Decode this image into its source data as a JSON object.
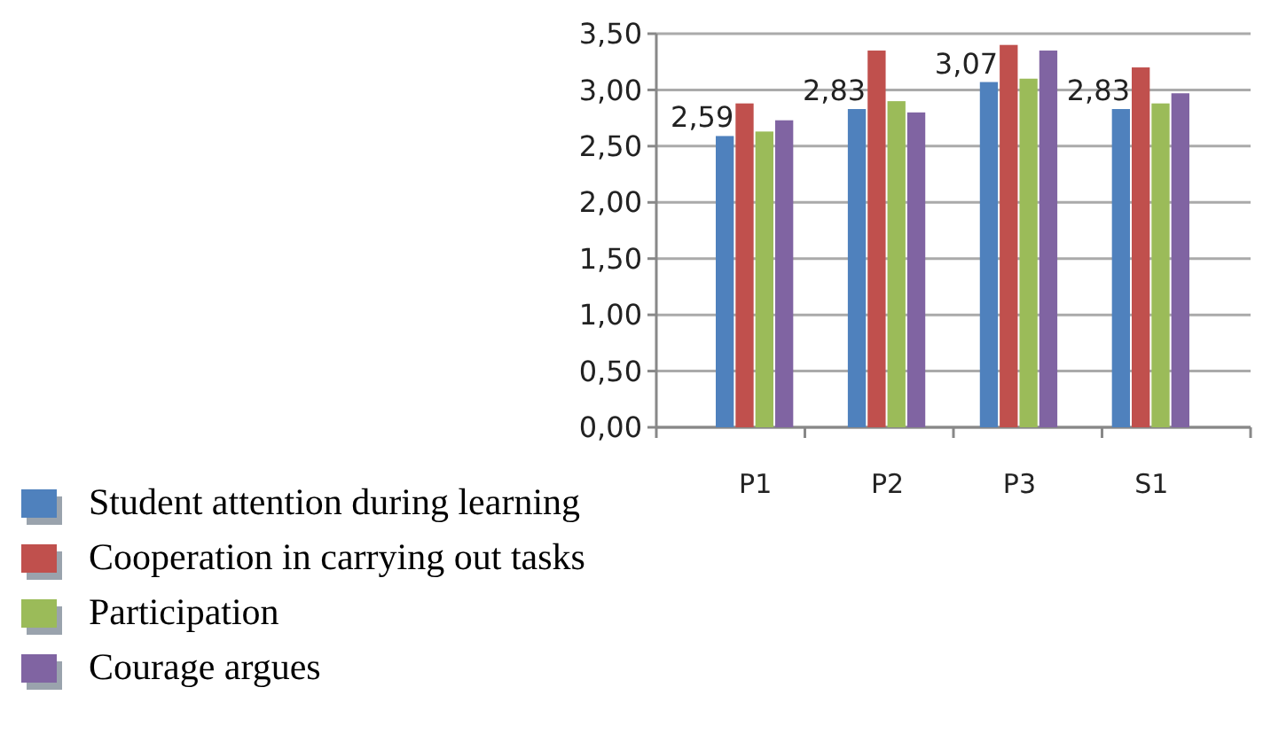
{
  "chart_data": {
    "type": "bar",
    "categories": [
      "P1",
      "P2",
      "P3",
      "S1"
    ],
    "series": [
      {
        "name": "Student attention during learning",
        "color": "#4f81bd",
        "values": [
          2.59,
          2.83,
          3.07,
          2.83
        ],
        "value_labels": [
          "2,59",
          "2,83",
          "3,07",
          "2,83"
        ]
      },
      {
        "name": "Cooperation in carrying out tasks",
        "color": "#c0504d",
        "values": [
          2.88,
          3.35,
          3.4,
          3.2
        ]
      },
      {
        "name": "Participation",
        "color": "#9bbb59",
        "values": [
          2.63,
          2.9,
          3.1,
          2.88
        ]
      },
      {
        "name": "Courage argues",
        "color": "#8064a2",
        "values": [
          2.73,
          2.8,
          3.35,
          2.97
        ]
      }
    ],
    "ylim": [
      0,
      3.5
    ],
    "yticks": [
      {
        "value": 0,
        "label": "0,00"
      },
      {
        "value": 0.5,
        "label": "0,50"
      },
      {
        "value": 1,
        "label": "1,00"
      },
      {
        "value": 1.5,
        "label": "1,50"
      },
      {
        "value": 2,
        "label": "2,00"
      },
      {
        "value": 2.5,
        "label": "2,50"
      },
      {
        "value": 3,
        "label": "3,00"
      },
      {
        "value": 3.5,
        "label": "3,50"
      }
    ],
    "grid": "y",
    "legend": "bottom left"
  }
}
